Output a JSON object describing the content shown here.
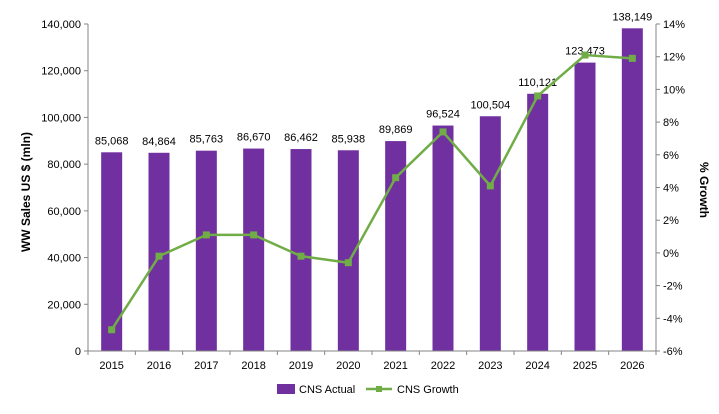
{
  "chart_data": {
    "type": "bar",
    "categories": [
      "2015",
      "2016",
      "2017",
      "2018",
      "2019",
      "2020",
      "2021",
      "2022",
      "2023",
      "2024",
      "2025",
      "2026"
    ],
    "series": [
      {
        "name": "CNS Actual",
        "type": "bar",
        "axis": "left",
        "values": [
          85068,
          84864,
          85763,
          86670,
          86462,
          85938,
          89869,
          96524,
          100504,
          110121,
          123473,
          138149
        ],
        "labels": [
          "85,068",
          "84,864",
          "85,763",
          "86,670",
          "86,462",
          "85,938",
          "89,869",
          "96,524",
          "100,504",
          "110,121",
          "123,473",
          "138,149"
        ],
        "color": "#7030A0"
      },
      {
        "name": "CNS Growth",
        "type": "line",
        "axis": "right",
        "values": [
          -4.7,
          -0.2,
          1.1,
          1.1,
          -0.2,
          -0.6,
          4.6,
          7.4,
          4.1,
          9.6,
          12.1,
          11.9
        ],
        "color": "#70AD47"
      }
    ],
    "ylabel": "WW Sales US $ (mln)",
    "y2label": "% Growth",
    "ylim": [
      0,
      140000
    ],
    "y2lim": [
      -6,
      14
    ],
    "yticks": [
      "0",
      "20,000",
      "40,000",
      "60,000",
      "80,000",
      "100,000",
      "120,000",
      "140,000"
    ],
    "y2ticks": [
      "-6%",
      "-4%",
      "-2%",
      "0%",
      "2%",
      "4%",
      "6%",
      "8%",
      "10%",
      "12%",
      "14%"
    ],
    "legend": "bottom",
    "grid": false
  }
}
